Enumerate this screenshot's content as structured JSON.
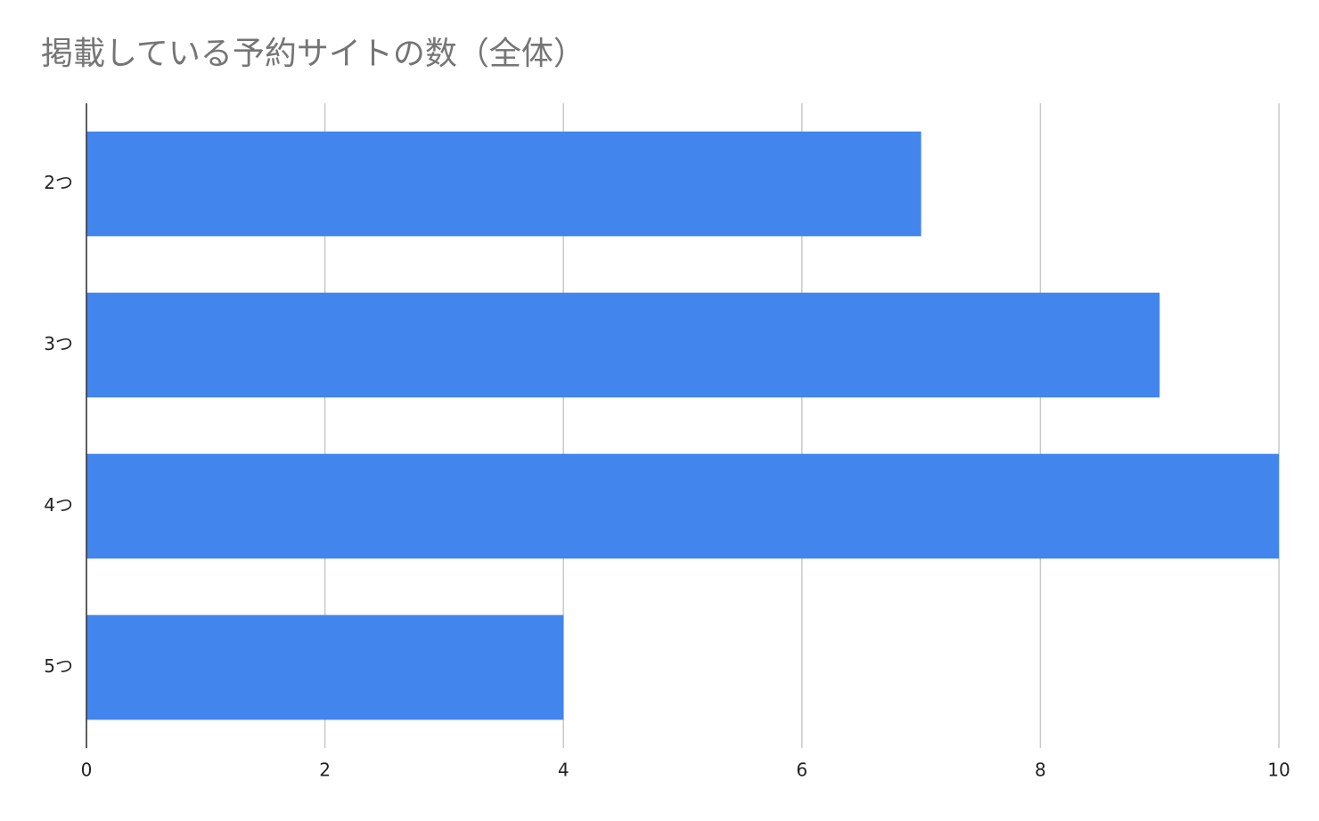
{
  "chart_data": {
    "type": "bar",
    "orientation": "horizontal",
    "title": "掲載している予約サイトの数（全体）",
    "categories": [
      "2つ",
      "3つ",
      "4つ",
      "5つ"
    ],
    "values": [
      7,
      9,
      10,
      4
    ],
    "color": "#4285ec",
    "xlim": [
      0,
      10
    ],
    "xticks": [
      0,
      2,
      4,
      6,
      8,
      10
    ],
    "grid": true
  }
}
